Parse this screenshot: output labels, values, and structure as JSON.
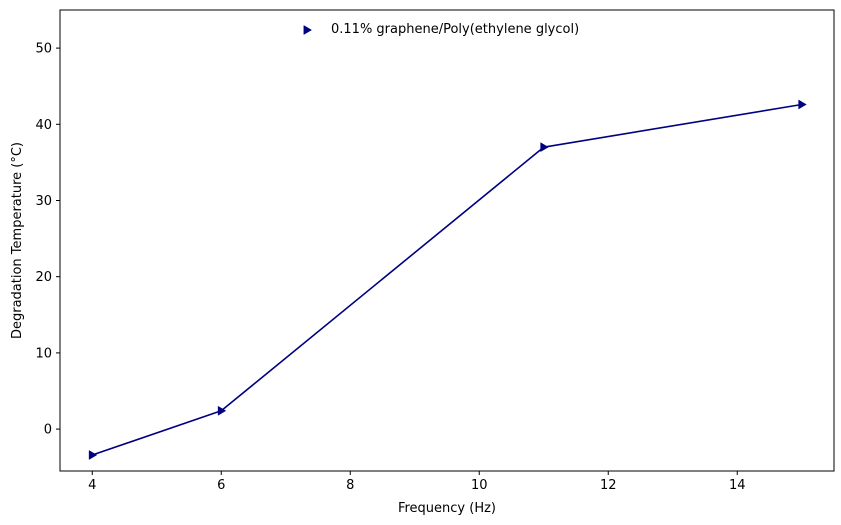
{
  "chart_data": {
    "type": "line",
    "title": "",
    "xlabel": "Frequency (Hz)",
    "ylabel": "Degradation Temperature (°C)",
    "xlim": [
      3.5,
      15.5
    ],
    "ylim": [
      -5.5,
      55
    ],
    "xticks": [
      4,
      6,
      8,
      10,
      12,
      14
    ],
    "yticks": [
      0,
      10,
      20,
      30,
      40,
      50
    ],
    "grid": false,
    "legend_position": "top-center",
    "series": [
      {
        "name": "0.11% graphene/Poly(ethylene glycol)",
        "color": "#000080",
        "marker": "triangle-right",
        "x": [
          4,
          6,
          11,
          15
        ],
        "y": [
          -3.4,
          2.4,
          37.0,
          42.6
        ]
      }
    ]
  }
}
